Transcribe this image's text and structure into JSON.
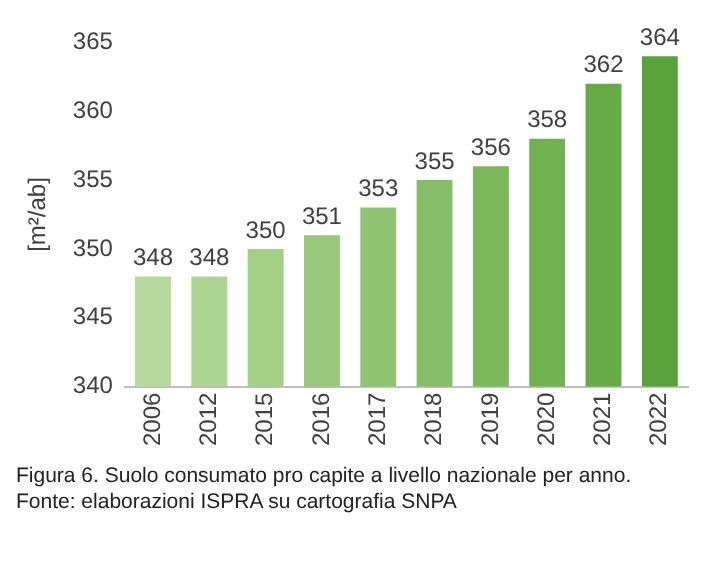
{
  "chart_data": {
    "type": "bar",
    "ylabel": "[m²/ab]",
    "categories": [
      "2006",
      "2012",
      "2015",
      "2016",
      "2017",
      "2018",
      "2019",
      "2020",
      "2021",
      "2022"
    ],
    "values": [
      348,
      348,
      350,
      351,
      353,
      355,
      356,
      358,
      362,
      364
    ],
    "colors": [
      "#b5d99c",
      "#acd492",
      "#a3cf87",
      "#99ca7c",
      "#8fc471",
      "#85be66",
      "#7bb85b",
      "#70b250",
      "#66ab45",
      "#5aa33a"
    ],
    "ylim": [
      340,
      365
    ],
    "yticks": [
      340,
      345,
      350,
      355,
      360,
      365
    ],
    "grid": false,
    "data_labels": true,
    "annotations": [
      "Figura 6. Suolo consumato pro capite a livello nazionale per anno.",
      "Fonte: elaborazioni ISPRA su cartografia SNPA"
    ]
  }
}
